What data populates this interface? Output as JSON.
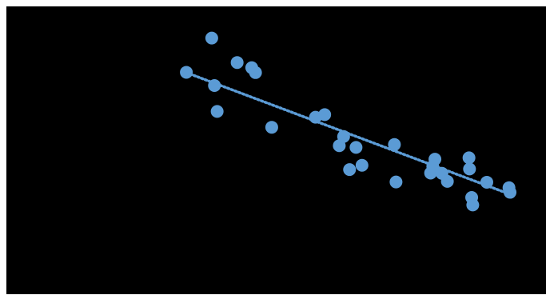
{
  "chart_data": {
    "type": "scatter",
    "title": "",
    "xlabel": "",
    "ylabel": "",
    "grid": false,
    "legend": "none",
    "xlim": [
      0,
      100
    ],
    "ylim": [
      0,
      100
    ],
    "colors": {
      "background": "#000000",
      "marker": "#5b9bd5",
      "trendline": "#5b9bd5",
      "frame": "#ffffff"
    },
    "series": [
      {
        "points": [
          {
            "x": 33.3,
            "y": 77.1
          },
          {
            "x": 38.0,
            "y": 89.0
          },
          {
            "x": 38.5,
            "y": 72.5
          },
          {
            "x": 39.0,
            "y": 63.5
          },
          {
            "x": 42.7,
            "y": 80.5
          },
          {
            "x": 45.4,
            "y": 78.7
          },
          {
            "x": 46.1,
            "y": 77.0
          },
          {
            "x": 49.1,
            "y": 58.0
          },
          {
            "x": 57.2,
            "y": 61.5
          },
          {
            "x": 58.9,
            "y": 62.4
          },
          {
            "x": 61.6,
            "y": 51.6
          },
          {
            "x": 62.4,
            "y": 54.8
          },
          {
            "x": 63.5,
            "y": 43.3
          },
          {
            "x": 64.7,
            "y": 51.0
          },
          {
            "x": 65.8,
            "y": 44.8
          },
          {
            "x": 71.8,
            "y": 52.0
          },
          {
            "x": 72.1,
            "y": 39.0
          },
          {
            "x": 78.5,
            "y": 42.1
          },
          {
            "x": 78.9,
            "y": 44.4
          },
          {
            "x": 79.3,
            "y": 46.9
          },
          {
            "x": 80.6,
            "y": 42.0
          },
          {
            "x": 81.6,
            "y": 39.2
          },
          {
            "x": 85.6,
            "y": 47.4
          },
          {
            "x": 85.7,
            "y": 43.5
          },
          {
            "x": 86.1,
            "y": 33.6
          },
          {
            "x": 86.3,
            "y": 31.0
          },
          {
            "x": 88.9,
            "y": 38.9
          },
          {
            "x": 93.0,
            "y": 37.0
          },
          {
            "x": 93.2,
            "y": 35.4
          }
        ]
      }
    ],
    "trendline": {
      "style": "dotted",
      "x": [
        34.0,
        93.5
      ],
      "y": [
        76.5,
        34.5
      ]
    }
  }
}
